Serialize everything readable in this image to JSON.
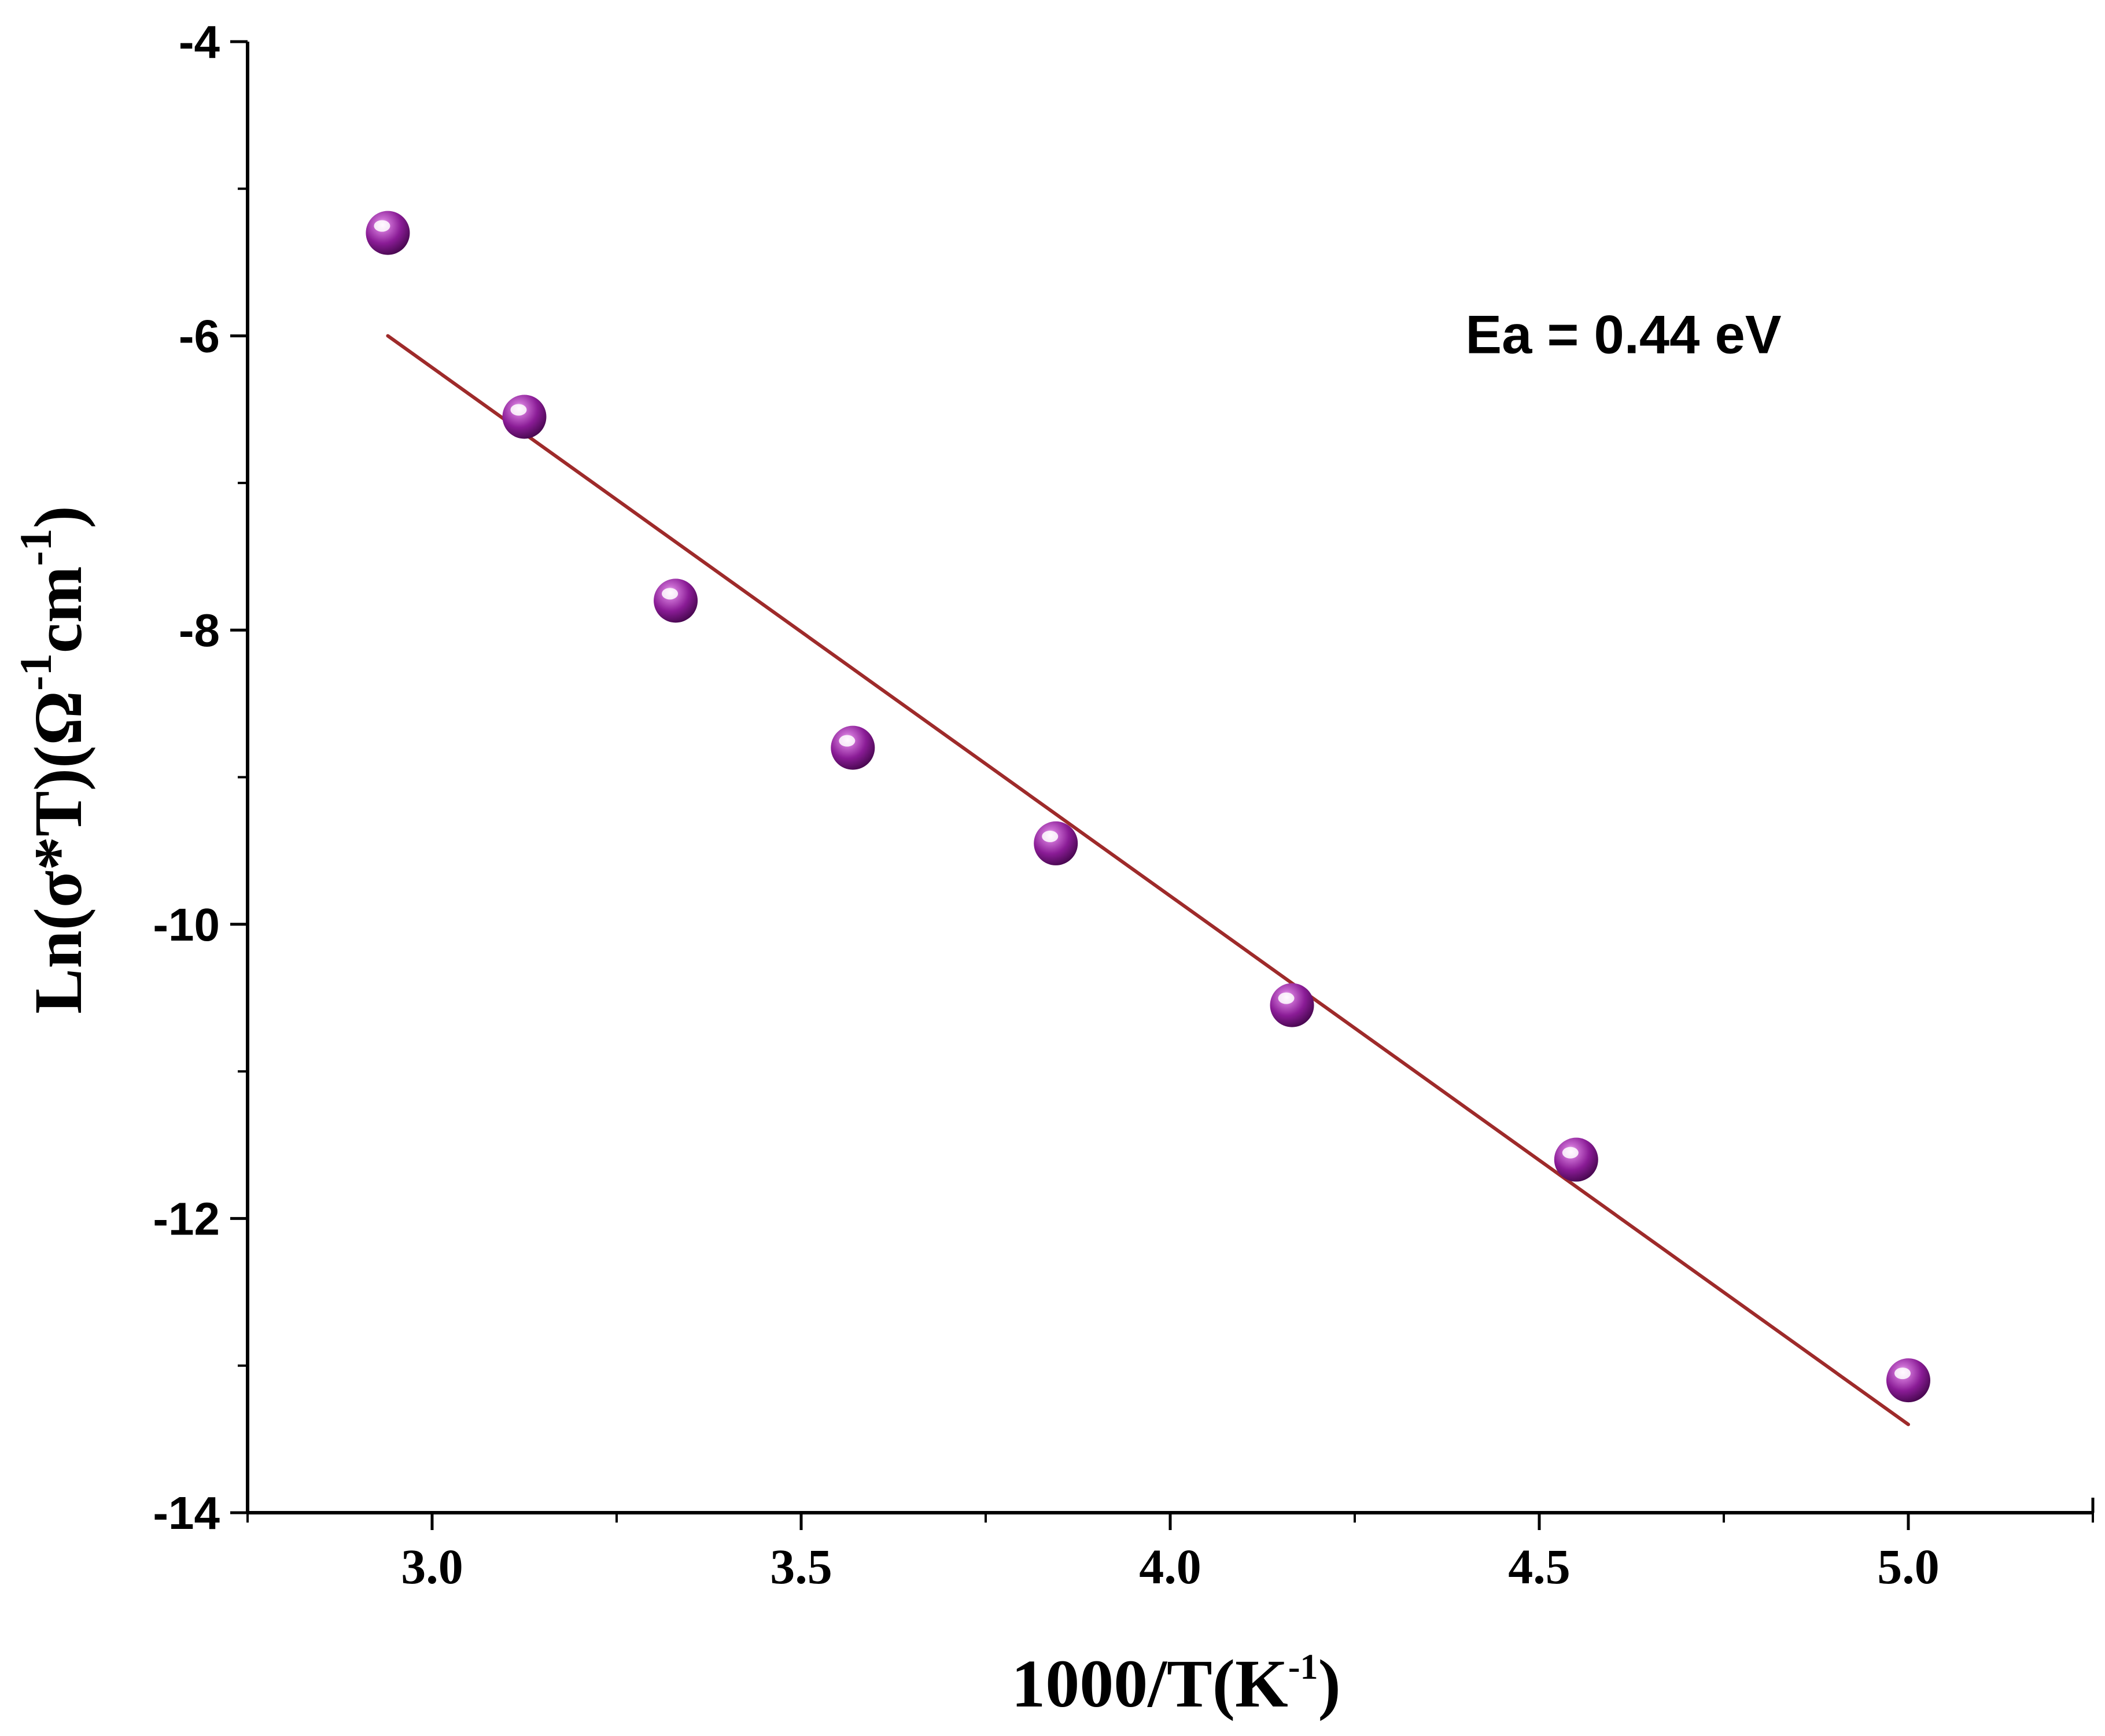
{
  "chart_data": {
    "type": "scatter",
    "title": "",
    "xlabel": "1000/T(K⁻¹)",
    "ylabel": "Ln(σ*T)(Ω⁻¹cm⁻¹)",
    "xlabel_parts": {
      "main": "1000/T(K",
      "sup": "-1",
      "close": ")"
    },
    "ylabel_parts": {
      "main": "Ln(σ*T)(Ω",
      "sup1": "-1",
      "mid": "cm",
      "sup2": "-1",
      "close": ")"
    },
    "xlim": [
      2.75,
      5.25
    ],
    "ylim": [
      -14,
      -4
    ],
    "x_ticks": [
      3.0,
      3.5,
      4.0,
      4.5,
      5.0
    ],
    "x_tick_labels": [
      "3.0",
      "3.5",
      "4.0",
      "4.5",
      "5.0"
    ],
    "x_minor_ticks": [
      2.75,
      3.25,
      3.75,
      4.25,
      4.75,
      5.25
    ],
    "y_ticks": [
      -4,
      -6,
      -8,
      -10,
      -12,
      -14
    ],
    "y_tick_labels": [
      "-4",
      "-6",
      "-8",
      "-10",
      "-12",
      "-14"
    ],
    "y_minor_ticks": [
      -5,
      -7,
      -9,
      -11,
      -13
    ],
    "grid": false,
    "series": [
      {
        "name": "data",
        "type": "scatter",
        "color": "#8a1c96",
        "x": [
          2.94,
          3.125,
          3.33,
          3.57,
          3.845,
          4.165,
          4.55,
          5.0
        ],
        "y": [
          -5.3,
          -6.55,
          -7.8,
          -8.8,
          -9.45,
          -10.55,
          -11.6,
          -13.1
        ]
      },
      {
        "name": "linear fit",
        "type": "line",
        "color": "#9e2a2a",
        "x": [
          2.94,
          5.0
        ],
        "y": [
          -6.0,
          -13.4
        ]
      }
    ],
    "annotations": [
      {
        "text": "Ea = 0.44 eV",
        "x": 4.4,
        "y": -6.0
      }
    ]
  }
}
